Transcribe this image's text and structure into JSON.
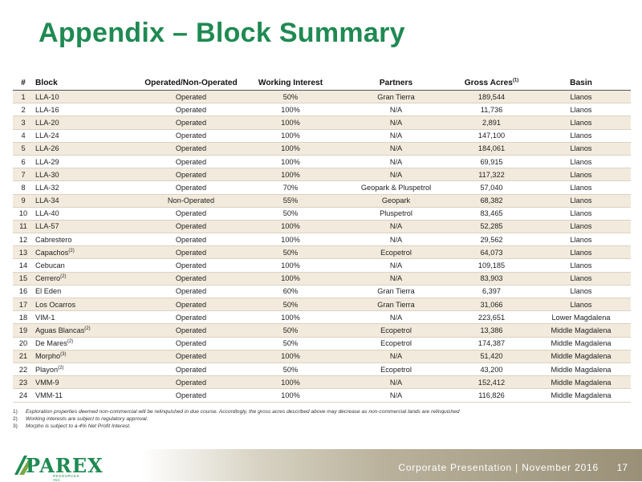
{
  "title": "Appendix – Block Summary",
  "table": {
    "headers": {
      "num": "#",
      "block": "Block",
      "operated": "Operated/Non-Operated",
      "working_interest": "Working Interest",
      "partners": "Partners",
      "gross_acres": "Gross Acres",
      "gross_acres_sup": "(1)",
      "basin": "Basin"
    },
    "rows": [
      {
        "num": "1",
        "block": "LLA-10",
        "sup": "",
        "operated": "Operated",
        "wi": "50%",
        "partners": "Gran Tierra",
        "acres": "189,544",
        "basin": "Llanos"
      },
      {
        "num": "2",
        "block": "LLA-16",
        "sup": "",
        "operated": "Operated",
        "wi": "100%",
        "partners": "N/A",
        "acres": "11,736",
        "basin": "Llanos"
      },
      {
        "num": "3",
        "block": "LLA-20",
        "sup": "",
        "operated": "Operated",
        "wi": "100%",
        "partners": "N/A",
        "acres": "2,891",
        "basin": "Llanos"
      },
      {
        "num": "4",
        "block": "LLA-24",
        "sup": "",
        "operated": "Operated",
        "wi": "100%",
        "partners": "N/A",
        "acres": "147,100",
        "basin": "Llanos"
      },
      {
        "num": "5",
        "block": "LLA-26",
        "sup": "",
        "operated": "Operated",
        "wi": "100%",
        "partners": "N/A",
        "acres": "184,061",
        "basin": "Llanos"
      },
      {
        "num": "6",
        "block": "LLA-29",
        "sup": "",
        "operated": "Operated",
        "wi": "100%",
        "partners": "N/A",
        "acres": "69,915",
        "basin": "Llanos"
      },
      {
        "num": "7",
        "block": "LLA-30",
        "sup": "",
        "operated": "Operated",
        "wi": "100%",
        "partners": "N/A",
        "acres": "117,322",
        "basin": "Llanos"
      },
      {
        "num": "8",
        "block": "LLA-32",
        "sup": "",
        "operated": "Operated",
        "wi": "70%",
        "partners": "Geopark & Pluspetrol",
        "acres": "57,040",
        "basin": "Llanos"
      },
      {
        "num": "9",
        "block": "LLA-34",
        "sup": "",
        "operated": "Non-Operated",
        "wi": "55%",
        "partners": "Geopark",
        "acres": "68,382",
        "basin": "Llanos"
      },
      {
        "num": "10",
        "block": "LLA-40",
        "sup": "",
        "operated": "Operated",
        "wi": "50%",
        "partners": "Pluspetrol",
        "acres": "83,465",
        "basin": "Llanos"
      },
      {
        "num": "11",
        "block": "LLA-57",
        "sup": "",
        "operated": "Operated",
        "wi": "100%",
        "partners": "N/A",
        "acres": "52,285",
        "basin": "Llanos"
      },
      {
        "num": "12",
        "block": "Cabrestero",
        "sup": "",
        "operated": "Operated",
        "wi": "100%",
        "partners": "N/A",
        "acres": "29,562",
        "basin": "Llanos"
      },
      {
        "num": "13",
        "block": "Capachos",
        "sup": "(2)",
        "operated": "Operated",
        "wi": "50%",
        "partners": "Ecopetrol",
        "acres": "64,073",
        "basin": "Llanos"
      },
      {
        "num": "14",
        "block": "Cebucan",
        "sup": "",
        "operated": "Operated",
        "wi": "100%",
        "partners": "N/A",
        "acres": "109,185",
        "basin": "Llanos"
      },
      {
        "num": "15",
        "block": "Cerrero",
        "sup": "(2)",
        "operated": "Operated",
        "wi": "100%",
        "partners": "N/A",
        "acres": "83,903",
        "basin": "Llanos"
      },
      {
        "num": "16",
        "block": "El Eden",
        "sup": "",
        "operated": "Operated",
        "wi": "60%",
        "partners": "Gran Tierra",
        "acres": "6,397",
        "basin": "Llanos"
      },
      {
        "num": "17",
        "block": "Los Ocarros",
        "sup": "",
        "operated": "Operated",
        "wi": "50%",
        "partners": "Gran Tierra",
        "acres": "31,066",
        "basin": "Llanos"
      },
      {
        "num": "18",
        "block": "VIM-1",
        "sup": "",
        "operated": "Operated",
        "wi": "100%",
        "partners": "N/A",
        "acres": "223,651",
        "basin": "Lower Magdalena"
      },
      {
        "num": "19",
        "block": "Aguas Blancas",
        "sup": "(2)",
        "operated": "Operated",
        "wi": "50%",
        "partners": "Ecopetrol",
        "acres": "13,386",
        "basin": "Middle Magdalena"
      },
      {
        "num": "20",
        "block": "De Mares",
        "sup": "(2)",
        "operated": "Operated",
        "wi": "50%",
        "partners": "Ecopetrol",
        "acres": "174,387",
        "basin": "Middle Magdalena"
      },
      {
        "num": "21",
        "block": "Morpho",
        "sup": "(3)",
        "operated": "Operated",
        "wi": "100%",
        "partners": "N/A",
        "acres": "51,420",
        "basin": "Middle Magdalena"
      },
      {
        "num": "22",
        "block": "Playon",
        "sup": "(2)",
        "operated": "Operated",
        "wi": "50%",
        "partners": "Ecopetrol",
        "acres": "43,200",
        "basin": "Middle Magdalena"
      },
      {
        "num": "23",
        "block": "VMM-9",
        "sup": "",
        "operated": "Operated",
        "wi": "100%",
        "partners": "N/A",
        "acres": "152,412",
        "basin": "Middle Magdalena"
      },
      {
        "num": "24",
        "block": "VMM-11",
        "sup": "",
        "operated": "Operated",
        "wi": "100%",
        "partners": "N/A",
        "acres": "116,826",
        "basin": "Middle Magdalena"
      }
    ]
  },
  "footnotes": [
    {
      "num": "1)",
      "text": "Exploration properties deemed non-commercial will be relinquished in due course. Accordingly, the gross acres described above may decrease as non-commercial lands are relinquished"
    },
    {
      "num": "2)",
      "text": "Working interests are subject to regulatory approval."
    },
    {
      "num": "3)",
      "text": "Morpho is subject to a 4% Net Profit Interest."
    }
  ],
  "footer": {
    "text": "Corporate Presentation | November 2016",
    "page": "17",
    "logo_text": "PAREX",
    "logo_sub": "RESOURCES INC."
  },
  "colors": {
    "title": "#1f8a52",
    "band": "#f2eadc"
  }
}
